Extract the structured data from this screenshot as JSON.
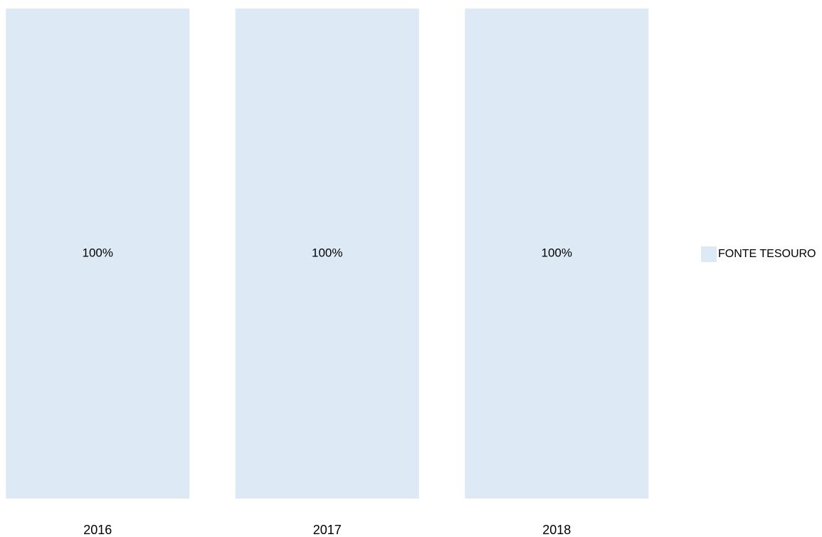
{
  "chart_data": {
    "type": "stacked_bar",
    "categories": [
      "2016",
      "2017",
      "2018"
    ],
    "series": [
      {
        "name": "FONTE TESOURO",
        "color": "#dde9f5",
        "values": [
          100,
          100,
          100
        ],
        "value_labels": [
          "100%",
          "100%",
          "100%"
        ]
      }
    ],
    "ylim": [
      0,
      100
    ]
  }
}
